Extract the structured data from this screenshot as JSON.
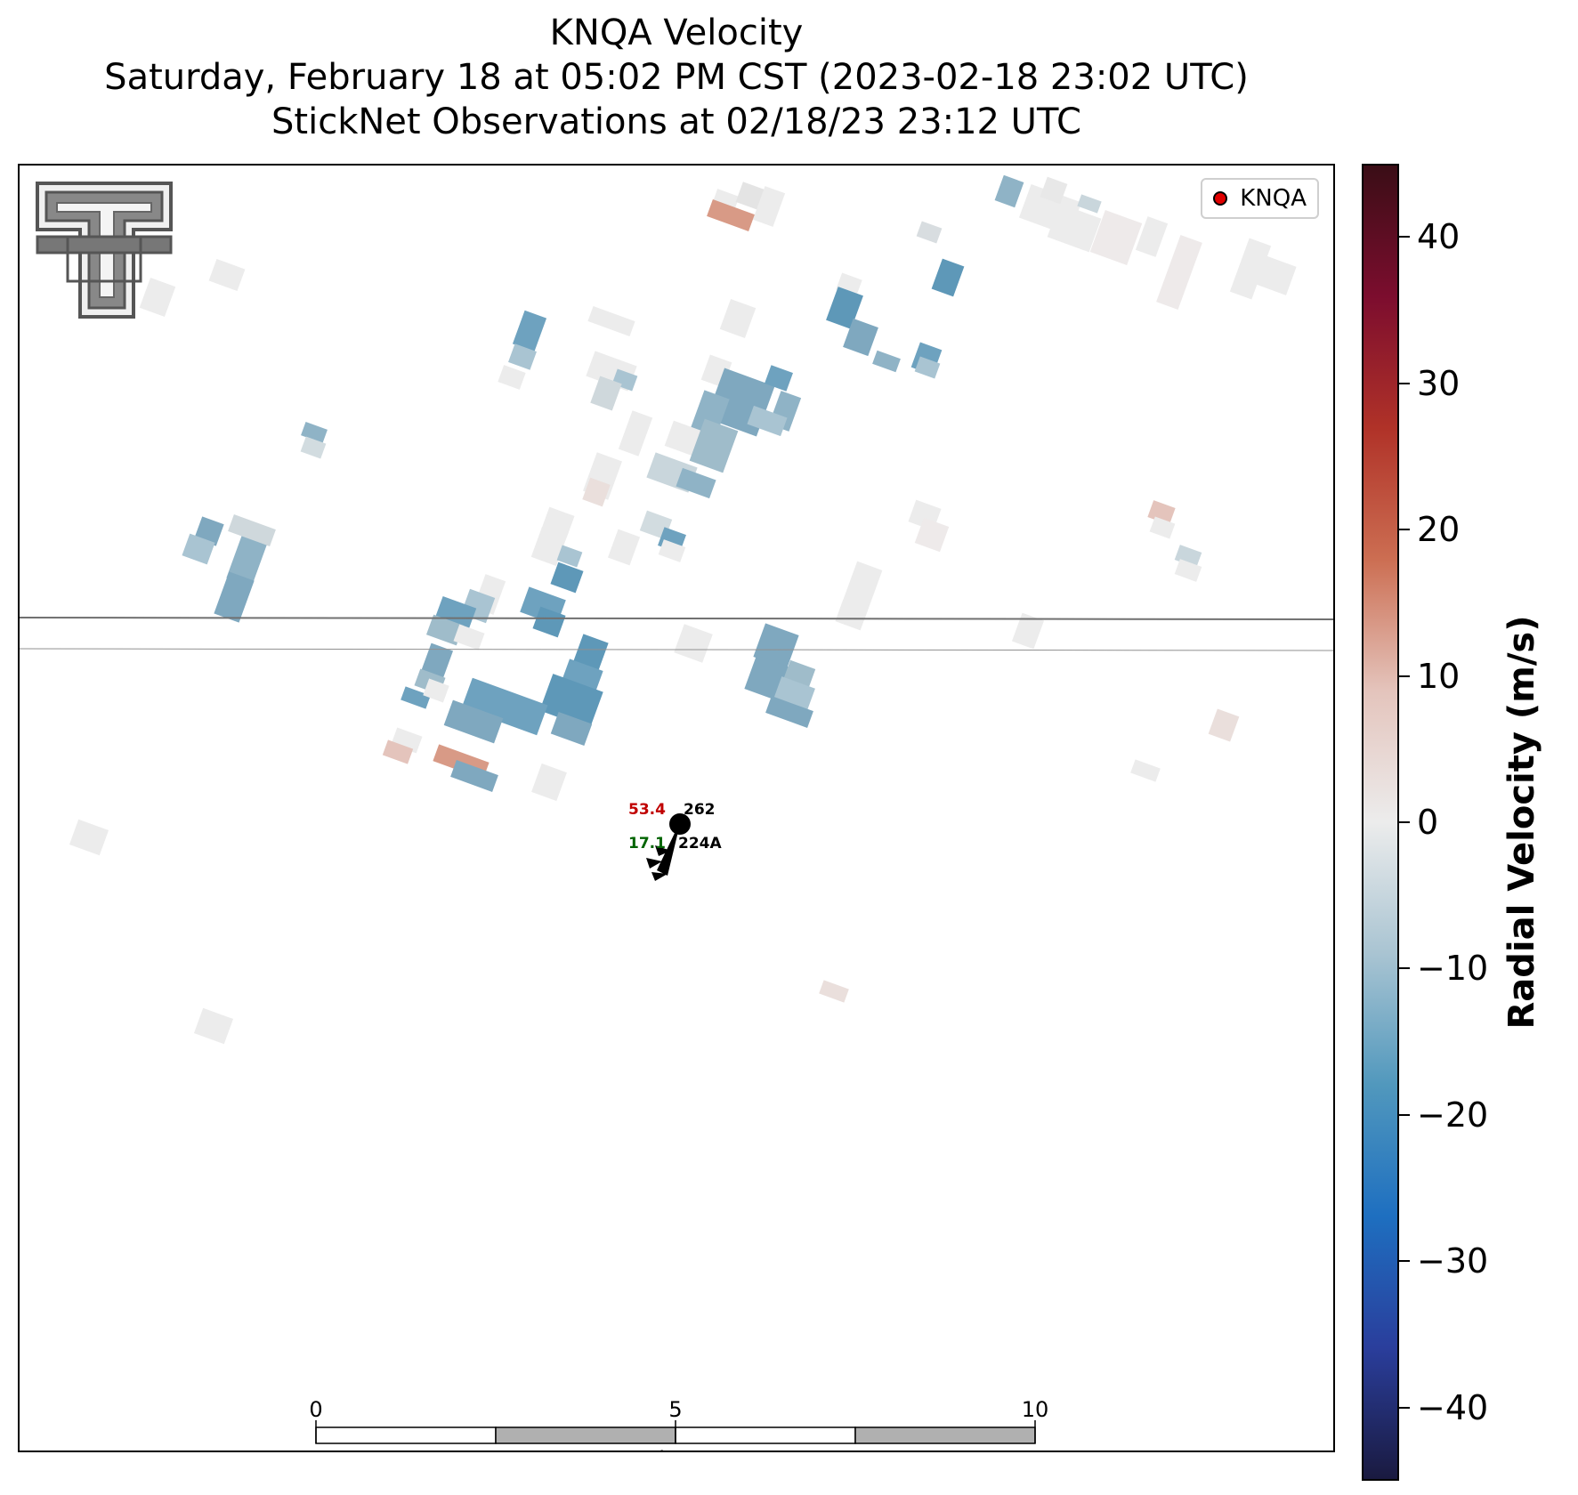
{
  "header": {
    "line1": "KNQA Velocity",
    "line2": "Saturday, February 18 at 05:02 PM CST (2023-02-18 23:02 UTC)",
    "line3": "StickNet Observations at 02/18/23 23:12 UTC"
  },
  "legend": {
    "label": "KNQA",
    "marker_color": "#e00000"
  },
  "logo": {
    "icon": "texas-tech-double-t-logo"
  },
  "station": {
    "temperature": "53.4",
    "pressure": "262",
    "dewpoint": "17.1",
    "station_id": "224A",
    "temperature_color": "#c00000",
    "dewpoint_color": "#006400"
  },
  "scale_bar": {
    "unit": "km",
    "ticks": [
      "0",
      "5",
      "10"
    ]
  },
  "colorbar": {
    "title": "Radial Velocity (m/s)",
    "min": -45,
    "max": 45,
    "ticks": [
      40,
      30,
      20,
      10,
      0,
      -10,
      -20,
      -30,
      -40
    ],
    "tick_labels": [
      "40",
      "30",
      "20",
      "10",
      "0",
      "−10",
      "−20",
      "−30",
      "−40"
    ],
    "stops": [
      "#1a1a40",
      "#2a3e9c",
      "#1e6fc0",
      "#5198bd",
      "#a9c4d2",
      "#ececec",
      "#e4c4bc",
      "#cc6e52",
      "#b03228",
      "#7c0d2e",
      "#3a0d16"
    ]
  }
}
